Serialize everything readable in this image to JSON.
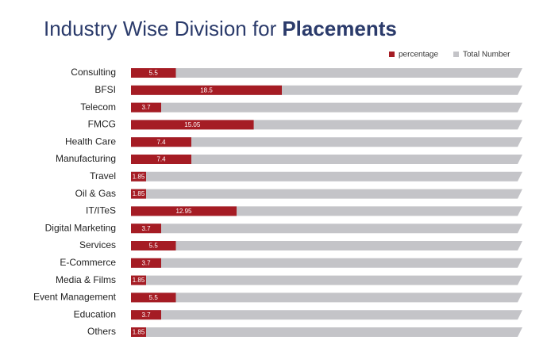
{
  "chart_data": {
    "type": "bar",
    "title": "Industry Wise Division for",
    "title_emphasis": "Placements",
    "orientation": "horizontal",
    "categories": [
      "Consulting",
      "BFSI",
      "Telecom",
      "FMCG",
      "Health Care",
      "Manufacturing",
      "Travel",
      "Oil & Gas",
      "IT/ITeS",
      "Digital Marketing",
      "Services",
      "E-Commerce",
      "Media & Films",
      "Event Management",
      "Education",
      "Others"
    ],
    "series": [
      {
        "name": "percentage",
        "color": "#a51c24",
        "values": [
          5.5,
          18.5,
          3.7,
          15.05,
          7.4,
          7.4,
          1.85,
          1.85,
          12.95,
          3.7,
          5.5,
          3.7,
          1.85,
          5.5,
          3.7,
          1.85
        ]
      },
      {
        "name": "Total Number",
        "color": "#c4c4c8",
        "values": [
          48,
          48,
          48,
          48,
          48,
          48,
          48,
          48,
          48,
          48,
          48,
          48,
          48,
          48,
          48,
          48
        ]
      }
    ],
    "xlim": [
      0,
      48
    ],
    "legend": "top-right"
  }
}
